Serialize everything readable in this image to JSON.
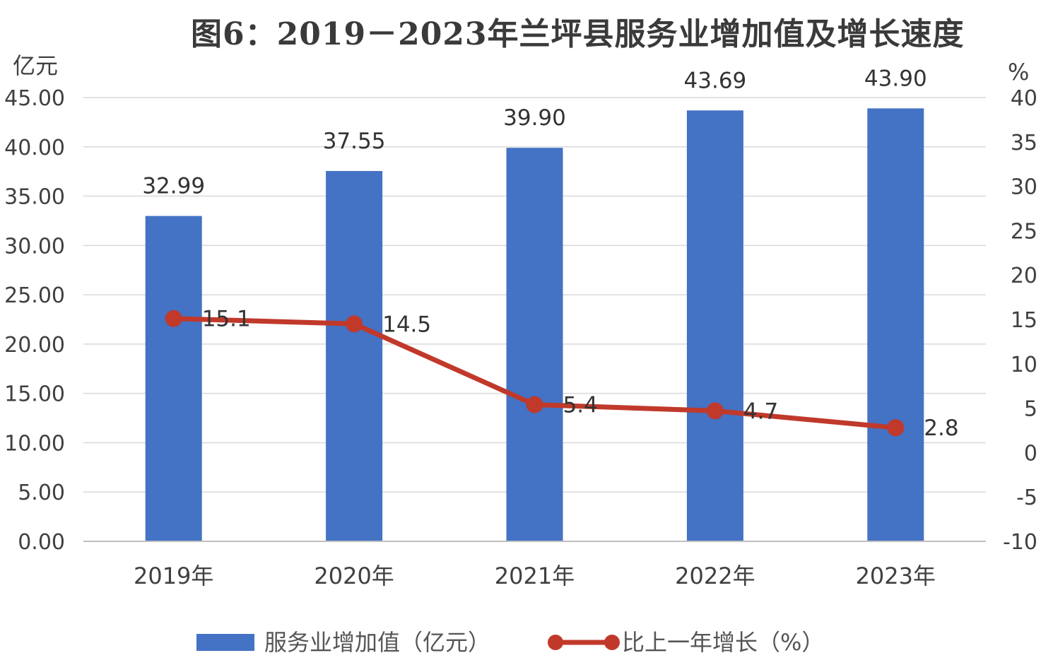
{
  "chart_data": {
    "type": "bar+line",
    "title": "图6：2019－2023年兰坪县服务业增加值及增长速度",
    "categories": [
      "2019年",
      "2020年",
      "2021年",
      "2022年",
      "2023年"
    ],
    "series": [
      {
        "name": "服务业增加值（亿元）",
        "type": "bar",
        "axis": "left",
        "color": "#4472C4",
        "values": [
          32.99,
          37.55,
          39.9,
          43.69,
          43.9
        ],
        "labels": [
          "32.99",
          "37.55",
          "39.90",
          "43.69",
          "43.90"
        ]
      },
      {
        "name": "比上一年增长（%）",
        "type": "line",
        "axis": "right",
        "color": "#C0392B",
        "values": [
          15.1,
          14.5,
          5.4,
          4.7,
          2.8
        ],
        "labels": [
          "15.1",
          "14.5",
          "5.4",
          "4.7",
          "2.8"
        ]
      }
    ],
    "y_left": {
      "unit": "亿元",
      "ylim": [
        0,
        45
      ],
      "ticks": [
        "0.00",
        "5.00",
        "10.00",
        "15.00",
        "20.00",
        "25.00",
        "30.00",
        "35.00",
        "40.00",
        "45.00"
      ]
    },
    "y_right": {
      "unit": "%",
      "ylim": [
        -10,
        40
      ],
      "ticks": [
        "-10",
        "-5",
        "0",
        "5",
        "10",
        "15",
        "20",
        "25",
        "30",
        "35",
        "40"
      ]
    },
    "grid": true,
    "legend": "bottom"
  }
}
